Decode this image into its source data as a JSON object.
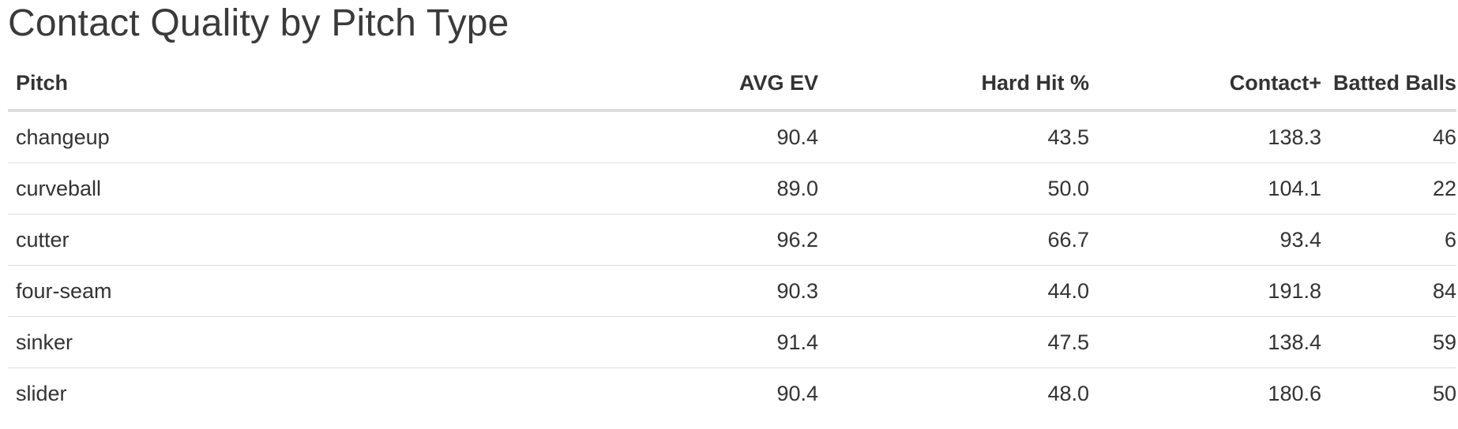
{
  "title": "Contact Quality by Pitch Type",
  "table": {
    "headers": [
      "Pitch",
      "AVG EV",
      "Hard Hit %",
      "Contact+",
      "Batted Balls"
    ],
    "rows": [
      [
        "changeup",
        "90.4",
        "43.5",
        "138.3",
        "46"
      ],
      [
        "curveball",
        "89.0",
        "50.0",
        "104.1",
        "22"
      ],
      [
        "cutter",
        "96.2",
        "66.7",
        "93.4",
        "6"
      ],
      [
        "four-seam",
        "90.3",
        "44.0",
        "191.8",
        "84"
      ],
      [
        "sinker",
        "91.4",
        "47.5",
        "138.4",
        "59"
      ],
      [
        "slider",
        "90.4",
        "48.0",
        "180.6",
        "50"
      ]
    ]
  }
}
